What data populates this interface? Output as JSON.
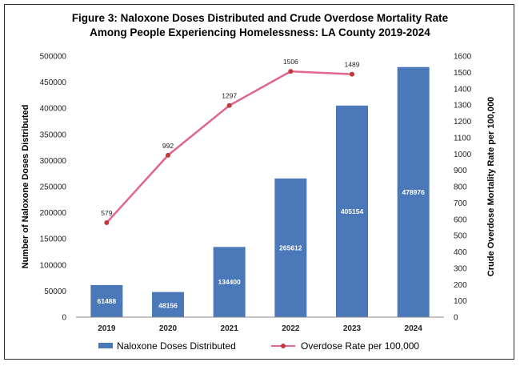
{
  "chart_data": {
    "type": "bar",
    "title_line1": "Figure 3: Naloxone Doses Distributed and Crude Overdose Mortality Rate",
    "title_line2": "Among People Experiencing Homelessness: LA County 2019-2024",
    "categories": [
      "2019",
      "2020",
      "2021",
      "2022",
      "2023",
      "2024"
    ],
    "ylabel": "Number of Naloxone Doses Distributed",
    "y2label": "Crude Overdose Mortality  Rate per 100,000",
    "ylim": [
      0,
      500000
    ],
    "y2lim": [
      0,
      1600
    ],
    "yticks": [
      "0",
      "50000",
      "100000",
      "150000",
      "200000",
      "250000",
      "300000",
      "350000",
      "400000",
      "450000",
      "500000"
    ],
    "y2ticks": [
      "0",
      "100",
      "200",
      "300",
      "400",
      "500",
      "600",
      "700",
      "800",
      "900",
      "1000",
      "1100",
      "1200",
      "1300",
      "1400",
      "1500",
      "1600"
    ],
    "grid": false,
    "legend_position": "bottom",
    "series": [
      {
        "name": "Naloxone Doses Distributed",
        "type": "bar",
        "axis": "left",
        "color": "#4a78b8",
        "values": [
          61488,
          48156,
          134400,
          265612,
          405154,
          478976
        ],
        "labels": [
          "61488",
          "48156",
          "134400",
          "265612",
          "405154",
          "478976"
        ]
      },
      {
        "name": "Overdose Rate per 100,000",
        "type": "line",
        "axis": "right",
        "color": "#e0668f",
        "marker_color": "#c0393b",
        "values": [
          579,
          992,
          1297,
          1506,
          1489,
          null
        ],
        "labels": [
          "579",
          "992",
          "1297",
          "1506",
          "1489",
          ""
        ]
      }
    ]
  }
}
